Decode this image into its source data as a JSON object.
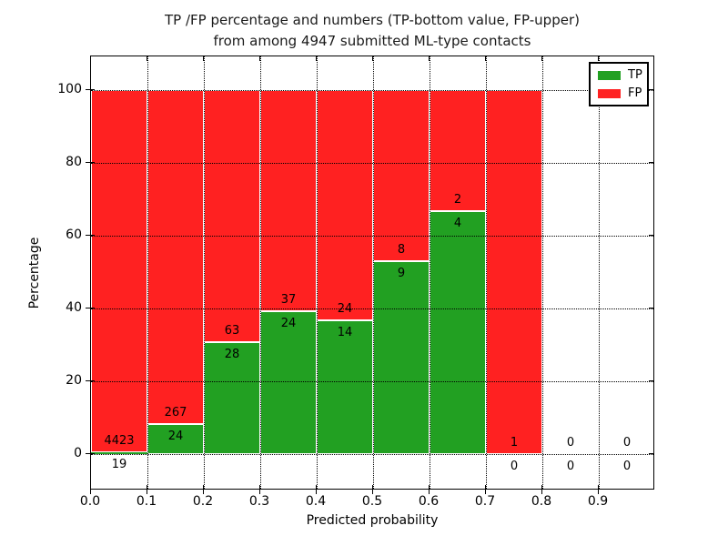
{
  "figure": {
    "title_line1": "TP /FP percentage and numbers (TP-bottom value, FP-upper)",
    "title_line2": "from among 4947 submitted ML-type contacts",
    "xlabel": "Predicted probability",
    "ylabel": "Percentage"
  },
  "legend": {
    "position": "upper right",
    "items": [
      {
        "label": "TP",
        "color": "#22a022"
      },
      {
        "label": "FP",
        "color": "#ff2121"
      }
    ]
  },
  "axes": {
    "x_tick_labels": [
      "0.0",
      "0.1",
      "0.2",
      "0.3",
      "0.4",
      "0.5",
      "0.6",
      "0.7",
      "0.8",
      "0.9"
    ],
    "y_tick_labels": [
      "0",
      "20",
      "40",
      "60",
      "80",
      "100"
    ],
    "y_tick_values": [
      0,
      20,
      40,
      60,
      80,
      100
    ],
    "x_range": [
      0.0,
      1.0
    ],
    "y_range": [
      -10,
      110
    ]
  },
  "chart_data": {
    "type": "bar",
    "variant": "stacked-percentage",
    "title": "TP /FP percentage and numbers (TP-bottom value, FP-upper) from among 4947 submitted ML-type contacts",
    "xlabel": "Predicted probability",
    "ylabel": "Percentage",
    "total_contacts": 4947,
    "bin_width": 0.1,
    "ylim": [
      -10,
      110
    ],
    "grid": "dotted",
    "legend_position": "upper right",
    "colors": {
      "tp": "#22a022",
      "fp": "#ff2121",
      "bar_edge": "#ffffff"
    },
    "annotation_note": "FP count printed above green-bar top, TP count printed below it",
    "bins": [
      {
        "x_start": 0.0,
        "x_end": 0.1,
        "tp": 19,
        "fp": 4423,
        "tp_pct": 0.43,
        "fp_pct": 99.57
      },
      {
        "x_start": 0.1,
        "x_end": 0.2,
        "tp": 24,
        "fp": 267,
        "tp_pct": 8.25,
        "fp_pct": 91.75
      },
      {
        "x_start": 0.2,
        "x_end": 0.3,
        "tp": 28,
        "fp": 63,
        "tp_pct": 30.77,
        "fp_pct": 69.23
      },
      {
        "x_start": 0.3,
        "x_end": 0.4,
        "tp": 24,
        "fp": 37,
        "tp_pct": 39.34,
        "fp_pct": 60.66
      },
      {
        "x_start": 0.4,
        "x_end": 0.5,
        "tp": 14,
        "fp": 24,
        "tp_pct": 36.84,
        "fp_pct": 63.16
      },
      {
        "x_start": 0.5,
        "x_end": 0.6,
        "tp": 9,
        "fp": 8,
        "tp_pct": 52.94,
        "fp_pct": 47.06
      },
      {
        "x_start": 0.6,
        "x_end": 0.7,
        "tp": 4,
        "fp": 2,
        "tp_pct": 66.67,
        "fp_pct": 33.33
      },
      {
        "x_start": 0.7,
        "x_end": 0.8,
        "tp": 0,
        "fp": 1,
        "tp_pct": 0.0,
        "fp_pct": 100.0
      },
      {
        "x_start": 0.8,
        "x_end": 0.9,
        "tp": 0,
        "fp": 0,
        "tp_pct": null,
        "fp_pct": null
      },
      {
        "x_start": 0.9,
        "x_end": 1.0,
        "tp": 0,
        "fp": 0,
        "tp_pct": null,
        "fp_pct": null
      }
    ]
  }
}
